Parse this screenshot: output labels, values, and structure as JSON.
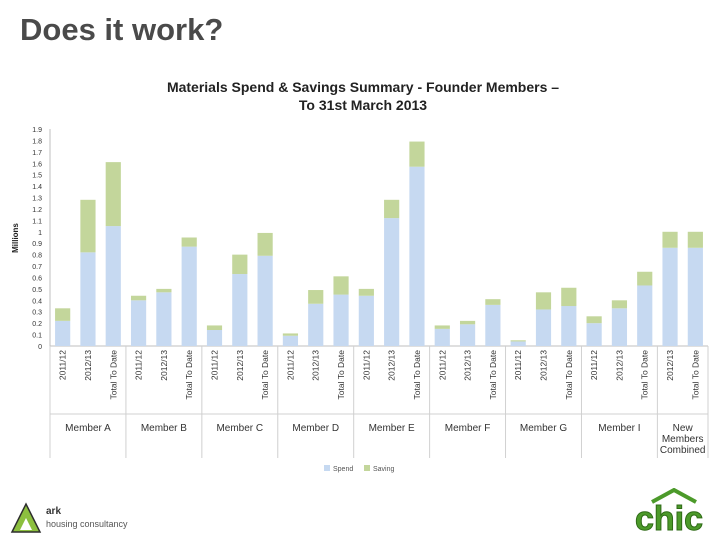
{
  "slide": {
    "title": "Does it work?"
  },
  "chart_data": {
    "type": "bar",
    "stacked": true,
    "title_line1": "Materials Spend & Savings Summary - Founder Members –",
    "title_line2": "To  31st March 2013",
    "ylabel": "Millions",
    "ylim": [
      0,
      1.9
    ],
    "yticks": [
      "0",
      "0.1",
      "0.2",
      "0.3",
      "0.4",
      "0.5",
      "0.6",
      "0.7",
      "0.8",
      "0.9",
      "1",
      "1.1",
      "1.2",
      "1.3",
      "1.4",
      "1.5",
      "1.6",
      "1.7",
      "1.8",
      "1.9"
    ],
    "grid": false,
    "legend_position": "bottom",
    "groups": [
      {
        "label": "Member A",
        "categories": [
          "2011/12",
          "2012/13",
          "Total To Date"
        ]
      },
      {
        "label": "Member B",
        "categories": [
          "2011/12",
          "2012/13",
          "Total To Date"
        ]
      },
      {
        "label": "Member C",
        "categories": [
          "2011/12",
          "2012/13",
          "Total To Date"
        ]
      },
      {
        "label": "Member D",
        "categories": [
          "2011/12",
          "2012/13",
          "Total To Date"
        ]
      },
      {
        "label": "Member E",
        "categories": [
          "2011/12",
          "2012/13",
          "Total To Date"
        ]
      },
      {
        "label": "Member F",
        "categories": [
          "2011/12",
          "2012/13",
          "Total To Date"
        ]
      },
      {
        "label": "Member G",
        "categories": [
          "2011/12",
          "2012/13",
          "Total To Date"
        ]
      },
      {
        "label": "Member I",
        "categories": [
          "2011/12",
          "2012/13",
          "Total To Date"
        ]
      },
      {
        "label": "New Members Combined",
        "label_lines": [
          "New",
          "Members",
          "Combined"
        ],
        "categories": [
          "2012/13",
          "Total To Date"
        ]
      }
    ],
    "series": [
      {
        "name": "Spend",
        "color": "#c6d9f1",
        "values": [
          0.22,
          0.82,
          1.05,
          0.4,
          0.47,
          0.87,
          0.14,
          0.63,
          0.79,
          0.09,
          0.37,
          0.45,
          0.44,
          1.12,
          1.57,
          0.15,
          0.19,
          0.36,
          0.04,
          0.32,
          0.35,
          0.2,
          0.33,
          0.53,
          0.86,
          0.86
        ]
      },
      {
        "name": "Saving",
        "color": "#c3d69b",
        "values": [
          0.11,
          0.46,
          0.56,
          0.04,
          0.03,
          0.08,
          0.04,
          0.17,
          0.2,
          0.02,
          0.12,
          0.16,
          0.06,
          0.16,
          0.22,
          0.03,
          0.03,
          0.05,
          0.01,
          0.15,
          0.16,
          0.06,
          0.07,
          0.12,
          0.14,
          0.14
        ]
      }
    ]
  },
  "logos": {
    "ark_name": "ark",
    "ark_tagline": "housing consultancy",
    "chic_text": "chic"
  },
  "colors": {
    "title": "#4a4a4a",
    "spend": "#c6d9f1",
    "saving": "#c3d69b",
    "chic_green": "#4c9a2a"
  }
}
